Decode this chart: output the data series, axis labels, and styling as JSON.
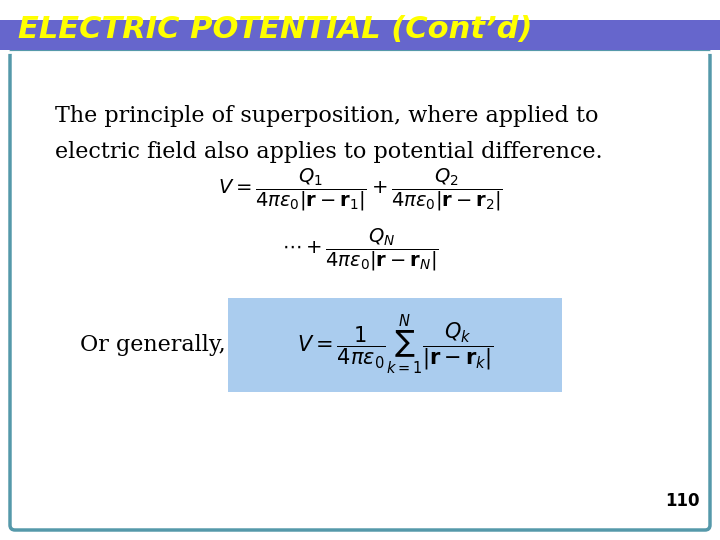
{
  "title": "ELECTRIC POTENTIAL (Cont’d)",
  "title_bg_color": "#6666CC",
  "title_text_color": "#FFFF00",
  "title_fontsize": 22,
  "slide_bg_color": "#FFFFFF",
  "border_color": "#5599AA",
  "body_text": "The principle of superposition, where applied to\nelectric field also applies to potential difference.",
  "body_fontsize": 16,
  "eq1": "V = \\dfrac{Q_1}{4\\pi\\varepsilon_0|\\mathbf{r} - \\mathbf{r}_1|} + \\dfrac{Q_2}{4\\pi\\varepsilon_0|\\mathbf{r} - \\mathbf{r}_2|}",
  "eq2": "\\cdots + \\dfrac{Q_N}{4\\pi\\varepsilon_0|\\mathbf{r} - \\mathbf{r}_N|}",
  "eq3": "V = \\dfrac{1}{4\\pi\\varepsilon_0} \\sum_{k=1}^{N} \\dfrac{Q_k}{|\\mathbf{r} - \\mathbf{r}_k|}",
  "or_generally_text": "Or generally,",
  "eq3_bg_color": "#AACCEE",
  "eq_fontsize": 16,
  "page_number": "110",
  "page_num_fontsize": 12
}
